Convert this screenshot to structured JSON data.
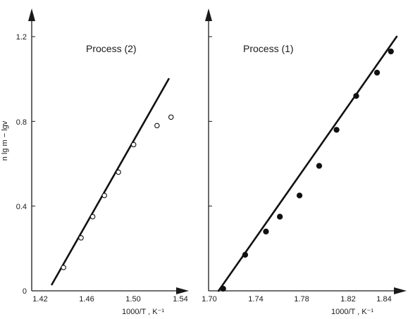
{
  "chart_data": [
    {
      "type": "scatter",
      "title": "Process (2)",
      "xlabel": "1000/T , K⁻¹",
      "ylabel": "n lg m − lgv",
      "xlim": [
        1.42,
        1.545
      ],
      "ylim": [
        0,
        1.2
      ],
      "x_ticks": [
        "1.42",
        "1.46",
        "1.50",
        "1.54"
      ],
      "y_ticks": [
        "0",
        "0.4",
        "0.8",
        "1.2"
      ],
      "series": [
        {
          "marker": "open-circle",
          "x": [
            1.44,
            1.455,
            1.465,
            1.475,
            1.487,
            1.5,
            1.52,
            1.532
          ],
          "y": [
            0.11,
            0.25,
            0.35,
            0.45,
            0.56,
            0.69,
            0.78,
            0.82
          ]
        }
      ],
      "fit_line": {
        "x": [
          1.43,
          1.53
        ],
        "y": [
          0.03,
          1.0
        ]
      },
      "grid": false
    },
    {
      "type": "scatter",
      "title": "Process (1)",
      "xlabel": "1000/T , K⁻¹",
      "xlim": [
        1.7,
        1.865
      ],
      "ylim": [
        0,
        1.2
      ],
      "x_ticks": [
        "1.70",
        "1.74",
        "1.78",
        "1.82",
        "1.84"
      ],
      "series": [
        {
          "marker": "filled-circle",
          "x": [
            1.712,
            1.731,
            1.749,
            1.761,
            1.778,
            1.795,
            1.81,
            1.827,
            1.845,
            1.857
          ],
          "y": [
            0.01,
            0.17,
            0.28,
            0.35,
            0.45,
            0.59,
            0.76,
            0.92,
            1.03,
            1.13
          ]
        }
      ],
      "fit_line": {
        "x": [
          1.708,
          1.862
        ],
        "y": [
          0.0,
          1.2
        ]
      },
      "grid": false
    }
  ]
}
